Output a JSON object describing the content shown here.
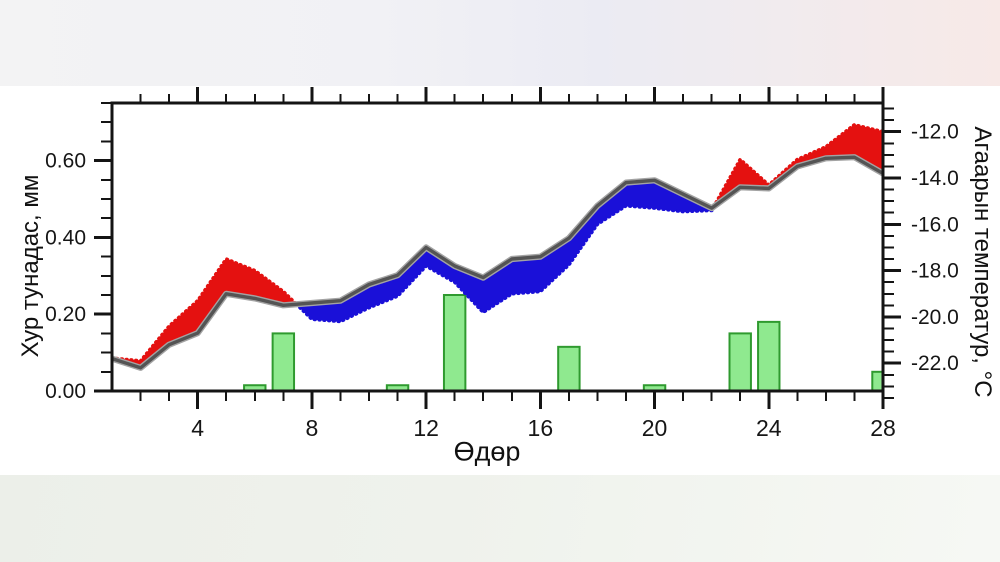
{
  "banner": {
    "top_gradient": [
      "#f3f3f4",
      "#ebebf3",
      "#f7e9e7"
    ],
    "bottom_gradient": [
      "#ecefe9",
      "#f6f8f4"
    ]
  },
  "chart_data": {
    "type": "line",
    "title": "",
    "x_axis": {
      "label": "Өдөр",
      "min": 1,
      "max": 28,
      "major_ticks": [
        4,
        8,
        12,
        16,
        20,
        24,
        28
      ],
      "major_tick_labels": [
        "4",
        "8",
        "12",
        "16",
        "20",
        "24",
        "28"
      ],
      "minor_step": 1
    },
    "left_axis": {
      "label": "Хур тунадас, мм",
      "min": 0,
      "max": 0.75,
      "major_ticks": [
        0,
        0.2,
        0.4,
        0.6
      ],
      "major_tick_labels": [
        "0.00",
        "0.20",
        "0.40",
        "0.60"
      ],
      "minor_step": 0.05
    },
    "right_axis": {
      "label": "Агаарын температур, °C",
      "top_value": -10.76,
      "bottom_value": -23.2,
      "axis_end_value": -23.95,
      "major_ticks": [
        -12,
        -14,
        -16,
        -18,
        -20,
        -22
      ],
      "major_tick_labels": [
        "-12.0",
        "-14.0",
        "-16.0",
        "-18.0",
        "-20.0",
        "-22.0"
      ],
      "minor_step": 0.5
    },
    "days": [
      1,
      2,
      3,
      4,
      5,
      6,
      7,
      8,
      9,
      10,
      11,
      12,
      13,
      14,
      15,
      16,
      17,
      18,
      19,
      20,
      21,
      22,
      23,
      24,
      25,
      26,
      27,
      28
    ],
    "series": [
      {
        "name": "norm-temperature",
        "type": "line-thick",
        "axis": "right",
        "values": [
          -21.8,
          -22.2,
          -21.2,
          -20.7,
          -19.0,
          -19.2,
          -19.5,
          -19.4,
          -19.3,
          -18.6,
          -18.2,
          -17.0,
          -17.8,
          -18.3,
          -17.5,
          -17.4,
          -16.6,
          -15.2,
          -14.2,
          -14.1,
          -14.7,
          -15.3,
          -14.4,
          -14.45,
          -13.5,
          -13.15,
          -13.1,
          -13.8
        ]
      },
      {
        "name": "actual-temperature",
        "type": "line-dotted",
        "axis": "right",
        "values": [
          -21.78,
          -21.9,
          -20.4,
          -19.3,
          -17.5,
          -18.0,
          -18.9,
          -20.1,
          -20.2,
          -19.6,
          -19.1,
          -17.8,
          -18.5,
          -19.8,
          -19.0,
          -18.9,
          -17.75,
          -16.0,
          -15.2,
          -15.3,
          -15.45,
          -15.4,
          -13.2,
          -14.3,
          -13.2,
          -12.65,
          -11.7,
          -12.0
        ]
      },
      {
        "name": "precipitation",
        "type": "bar",
        "axis": "left",
        "days": [
          6,
          7,
          11,
          13,
          17,
          20,
          23,
          24,
          28
        ],
        "values": [
          0.015,
          0.15,
          0.015,
          0.25,
          0.115,
          0.015,
          0.15,
          0.18,
          0.05
        ]
      }
    ],
    "colors": {
      "warm_fill": "#e41110",
      "cold_fill": "#1a10d8",
      "norm_line": "#545454",
      "norm_line_halo": "#a3a3a3",
      "bar_fill": "#8fe98f",
      "bar_border": "#2f9a2f",
      "axis": "#141414",
      "label": "#161616"
    }
  }
}
